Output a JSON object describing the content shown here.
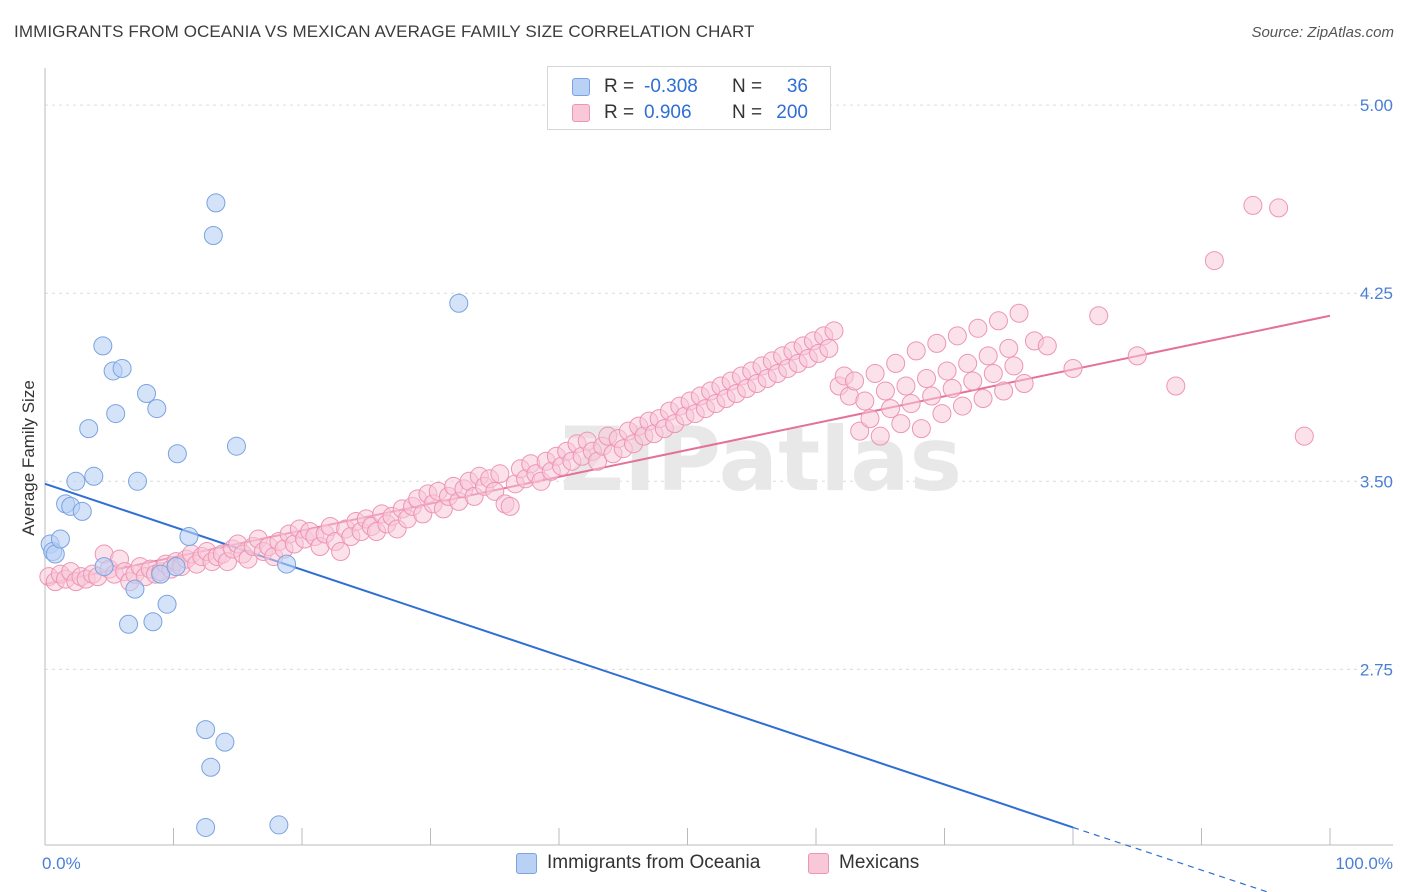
{
  "title": "IMMIGRANTS FROM OCEANIA VS MEXICAN AVERAGE FAMILY SIZE CORRELATION CHART",
  "source": "Source: ZipAtlas.com",
  "watermark": "ZIPatlas",
  "legend": {
    "rows": [
      {
        "r_label": "R =",
        "r_value": "-0.308",
        "n_label": "N =",
        "n_value": "36",
        "color": "#b9d1f5"
      },
      {
        "r_label": "R =",
        "r_value": "0.906",
        "n_label": "N =",
        "n_value": "200",
        "color": "#f8c8d8"
      }
    ]
  },
  "bottom_legend": {
    "series1": "Immigrants from Oceania",
    "series2": "Mexicans"
  },
  "colors": {
    "blue_fill": "#b9d1f5",
    "blue_stroke": "#7aa3e0",
    "blue_line": "#2f6ed3",
    "pink_fill": "#f8c8d8",
    "pink_stroke": "#ee95b4",
    "pink_line": "#e4719a",
    "tick_text": "#4a7fd6"
  },
  "chart_data": {
    "type": "scatter",
    "title": "IMMIGRANTS FROM OCEANIA VS MEXICAN AVERAGE FAMILY SIZE CORRELATION CHART",
    "xlabel": "",
    "ylabel": "Average Family Size",
    "xlim": [
      0,
      100
    ],
    "ylim": [
      2.05,
      5.1
    ],
    "x_tick_labels": [
      "0.0%",
      "100.0%"
    ],
    "y_ticks": [
      2.75,
      3.5,
      4.25,
      5.0
    ],
    "y_tick_labels": [
      "2.75",
      "3.50",
      "4.25",
      "5.00"
    ],
    "grid": true,
    "legend_position": "top-center",
    "series": [
      {
        "name": "Immigrants from Oceania",
        "r": -0.308,
        "n": 36,
        "trend": {
          "x": [
            0,
            80
          ],
          "y": [
            3.49,
            2.12
          ],
          "dashed_to": [
            100,
            1.78
          ]
        },
        "points": [
          [
            0.4,
            3.25
          ],
          [
            0.6,
            3.22
          ],
          [
            0.8,
            3.21
          ],
          [
            1.2,
            3.27
          ],
          [
            1.6,
            3.41
          ],
          [
            2.0,
            3.4
          ],
          [
            2.4,
            3.5
          ],
          [
            2.9,
            3.38
          ],
          [
            3.4,
            3.71
          ],
          [
            3.8,
            3.52
          ],
          [
            4.6,
            3.16
          ],
          [
            4.5,
            4.04
          ],
          [
            5.3,
            3.94
          ],
          [
            5.5,
            3.77
          ],
          [
            6.0,
            3.95
          ],
          [
            6.5,
            2.93
          ],
          [
            7.0,
            3.07
          ],
          [
            7.2,
            3.5
          ],
          [
            7.9,
            3.85
          ],
          [
            8.4,
            2.94
          ],
          [
            8.7,
            3.79
          ],
          [
            9.0,
            3.13
          ],
          [
            9.5,
            3.01
          ],
          [
            10.2,
            3.16
          ],
          [
            10.3,
            3.61
          ],
          [
            11.2,
            3.28
          ],
          [
            12.5,
            2.51
          ],
          [
            12.5,
            2.12
          ],
          [
            12.9,
            2.36
          ],
          [
            13.1,
            4.48
          ],
          [
            13.3,
            4.61
          ],
          [
            14.0,
            2.46
          ],
          [
            14.9,
            3.64
          ],
          [
            18.2,
            2.13
          ],
          [
            18.8,
            3.17
          ],
          [
            32.2,
            4.21
          ]
        ]
      },
      {
        "name": "Mexicans",
        "r": 0.906,
        "n": 200,
        "trend": {
          "x": [
            0,
            100
          ],
          "y": [
            3.09,
            4.16
          ]
        },
        "points": [
          [
            0.3,
            3.12
          ],
          [
            0.8,
            3.1
          ],
          [
            1.2,
            3.13
          ],
          [
            1.6,
            3.11
          ],
          [
            2.0,
            3.14
          ],
          [
            2.4,
            3.1
          ],
          [
            2.8,
            3.12
          ],
          [
            3.2,
            3.11
          ],
          [
            3.7,
            3.13
          ],
          [
            4.1,
            3.12
          ],
          [
            4.6,
            3.21
          ],
          [
            5.0,
            3.15
          ],
          [
            5.4,
            3.13
          ],
          [
            5.8,
            3.19
          ],
          [
            6.2,
            3.14
          ],
          [
            6.6,
            3.1
          ],
          [
            7.0,
            3.13
          ],
          [
            7.4,
            3.16
          ],
          [
            7.8,
            3.12
          ],
          [
            8.2,
            3.15
          ],
          [
            8.6,
            3.13
          ],
          [
            9.0,
            3.14
          ],
          [
            9.4,
            3.17
          ],
          [
            9.8,
            3.15
          ],
          [
            10.2,
            3.18
          ],
          [
            10.6,
            3.16
          ],
          [
            11.0,
            3.19
          ],
          [
            11.4,
            3.21
          ],
          [
            11.8,
            3.17
          ],
          [
            12.2,
            3.2
          ],
          [
            12.6,
            3.22
          ],
          [
            13.0,
            3.18
          ],
          [
            13.4,
            3.2
          ],
          [
            13.8,
            3.21
          ],
          [
            14.2,
            3.18
          ],
          [
            14.6,
            3.23
          ],
          [
            15.0,
            3.25
          ],
          [
            15.4,
            3.21
          ],
          [
            15.8,
            3.19
          ],
          [
            16.2,
            3.24
          ],
          [
            16.6,
            3.27
          ],
          [
            17.0,
            3.22
          ],
          [
            17.4,
            3.24
          ],
          [
            17.8,
            3.2
          ],
          [
            18.2,
            3.26
          ],
          [
            18.6,
            3.23
          ],
          [
            19.0,
            3.29
          ],
          [
            19.4,
            3.25
          ],
          [
            19.8,
            3.31
          ],
          [
            20.2,
            3.27
          ],
          [
            20.6,
            3.3
          ],
          [
            21.0,
            3.28
          ],
          [
            21.4,
            3.24
          ],
          [
            21.8,
            3.29
          ],
          [
            22.2,
            3.32
          ],
          [
            22.6,
            3.26
          ],
          [
            23.0,
            3.22
          ],
          [
            23.4,
            3.31
          ],
          [
            23.8,
            3.28
          ],
          [
            24.2,
            3.34
          ],
          [
            24.6,
            3.3
          ],
          [
            25.0,
            3.35
          ],
          [
            25.4,
            3.32
          ],
          [
            25.8,
            3.3
          ],
          [
            26.2,
            3.37
          ],
          [
            26.6,
            3.33
          ],
          [
            27.0,
            3.36
          ],
          [
            27.4,
            3.31
          ],
          [
            27.8,
            3.39
          ],
          [
            28.2,
            3.35
          ],
          [
            28.6,
            3.4
          ],
          [
            29.0,
            3.43
          ],
          [
            29.4,
            3.37
          ],
          [
            29.8,
            3.45
          ],
          [
            30.2,
            3.41
          ],
          [
            30.6,
            3.46
          ],
          [
            31.0,
            3.39
          ],
          [
            31.4,
            3.44
          ],
          [
            31.8,
            3.48
          ],
          [
            32.2,
            3.42
          ],
          [
            32.6,
            3.47
          ],
          [
            33.0,
            3.5
          ],
          [
            33.4,
            3.44
          ],
          [
            33.8,
            3.52
          ],
          [
            34.2,
            3.48
          ],
          [
            34.6,
            3.51
          ],
          [
            35.0,
            3.46
          ],
          [
            35.4,
            3.53
          ],
          [
            35.8,
            3.41
          ],
          [
            36.2,
            3.4
          ],
          [
            36.6,
            3.49
          ],
          [
            37.0,
            3.55
          ],
          [
            37.4,
            3.51
          ],
          [
            37.8,
            3.57
          ],
          [
            38.2,
            3.53
          ],
          [
            38.6,
            3.5
          ],
          [
            39.0,
            3.58
          ],
          [
            39.4,
            3.54
          ],
          [
            39.8,
            3.6
          ],
          [
            40.2,
            3.56
          ],
          [
            40.6,
            3.62
          ],
          [
            41.0,
            3.58
          ],
          [
            41.4,
            3.65
          ],
          [
            41.8,
            3.6
          ],
          [
            42.2,
            3.66
          ],
          [
            42.6,
            3.62
          ],
          [
            43.0,
            3.58
          ],
          [
            43.4,
            3.64
          ],
          [
            43.8,
            3.68
          ],
          [
            44.2,
            3.61
          ],
          [
            44.6,
            3.67
          ],
          [
            45.0,
            3.63
          ],
          [
            45.4,
            3.7
          ],
          [
            45.8,
            3.65
          ],
          [
            46.2,
            3.72
          ],
          [
            46.6,
            3.68
          ],
          [
            47.0,
            3.74
          ],
          [
            47.4,
            3.69
          ],
          [
            47.8,
            3.75
          ],
          [
            48.2,
            3.71
          ],
          [
            48.6,
            3.78
          ],
          [
            49.0,
            3.73
          ],
          [
            49.4,
            3.8
          ],
          [
            49.8,
            3.76
          ],
          [
            50.2,
            3.82
          ],
          [
            50.6,
            3.77
          ],
          [
            51.0,
            3.84
          ],
          [
            51.4,
            3.79
          ],
          [
            51.8,
            3.86
          ],
          [
            52.2,
            3.81
          ],
          [
            52.6,
            3.88
          ],
          [
            53.0,
            3.83
          ],
          [
            53.4,
            3.9
          ],
          [
            53.8,
            3.85
          ],
          [
            54.2,
            3.92
          ],
          [
            54.6,
            3.87
          ],
          [
            55.0,
            3.94
          ],
          [
            55.4,
            3.89
          ],
          [
            55.8,
            3.96
          ],
          [
            56.2,
            3.91
          ],
          [
            56.6,
            3.98
          ],
          [
            57.0,
            3.93
          ],
          [
            57.4,
            4.0
          ],
          [
            57.8,
            3.95
          ],
          [
            58.2,
            4.02
          ],
          [
            58.6,
            3.97
          ],
          [
            59.0,
            4.04
          ],
          [
            59.4,
            3.99
          ],
          [
            59.8,
            4.06
          ],
          [
            60.2,
            4.01
          ],
          [
            60.6,
            4.08
          ],
          [
            61.0,
            4.03
          ],
          [
            61.4,
            4.1
          ],
          [
            61.8,
            3.88
          ],
          [
            62.2,
            3.92
          ],
          [
            62.6,
            3.84
          ],
          [
            63.0,
            3.9
          ],
          [
            63.4,
            3.7
          ],
          [
            63.8,
            3.82
          ],
          [
            64.2,
            3.75
          ],
          [
            64.6,
            3.93
          ],
          [
            65.0,
            3.68
          ],
          [
            65.4,
            3.86
          ],
          [
            65.8,
            3.79
          ],
          [
            66.2,
            3.97
          ],
          [
            66.6,
            3.73
          ],
          [
            67.0,
            3.88
          ],
          [
            67.4,
            3.81
          ],
          [
            67.8,
            4.02
          ],
          [
            68.2,
            3.71
          ],
          [
            68.6,
            3.91
          ],
          [
            69.0,
            3.84
          ],
          [
            69.4,
            4.05
          ],
          [
            69.8,
            3.77
          ],
          [
            70.2,
            3.94
          ],
          [
            70.6,
            3.87
          ],
          [
            71.0,
            4.08
          ],
          [
            71.4,
            3.8
          ],
          [
            71.8,
            3.97
          ],
          [
            72.2,
            3.9
          ],
          [
            72.6,
            4.11
          ],
          [
            73.0,
            3.83
          ],
          [
            73.4,
            4.0
          ],
          [
            73.8,
            3.93
          ],
          [
            74.2,
            4.14
          ],
          [
            74.6,
            3.86
          ],
          [
            75.0,
            4.03
          ],
          [
            75.4,
            3.96
          ],
          [
            75.8,
            4.17
          ],
          [
            76.2,
            3.89
          ],
          [
            77.0,
            4.06
          ],
          [
            78.0,
            4.04
          ],
          [
            80.0,
            3.95
          ],
          [
            82.0,
            4.16
          ],
          [
            85.0,
            4.0
          ],
          [
            88.0,
            3.88
          ],
          [
            91.0,
            4.38
          ],
          [
            94.0,
            4.6
          ],
          [
            96.0,
            4.59
          ],
          [
            98.0,
            3.68
          ]
        ]
      }
    ]
  }
}
